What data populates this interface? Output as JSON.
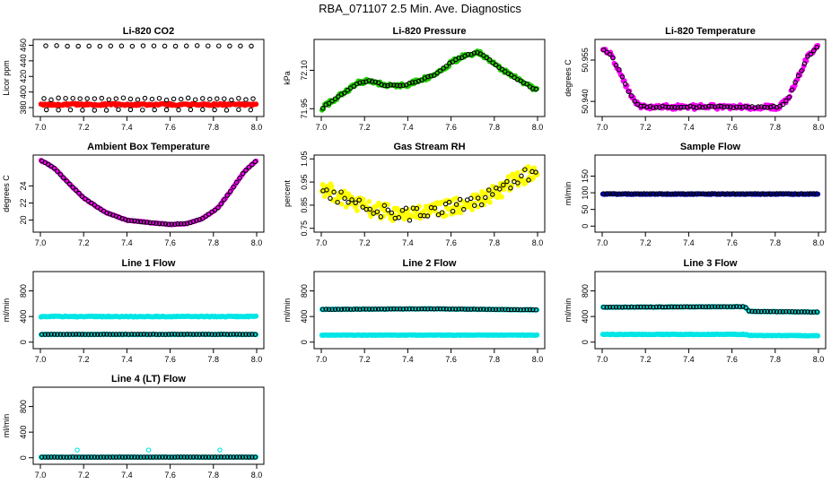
{
  "page_title": "RBA_071107  2.5 Min. Ave. Diagnostics",
  "chart_data": [
    {
      "type": "scatter",
      "title": "Li-820 CO2",
      "ylabel": "Licor ppm",
      "xlim": [
        7.0,
        8.0
      ],
      "ylim": [
        372,
        464
      ],
      "xticks": [
        "7.0",
        "7.2",
        "7.4",
        "7.6",
        "7.8",
        "8.0"
      ],
      "yticks": [
        {
          "v": 380,
          "label": "380"
        },
        {
          "v": 400,
          "label": "400"
        },
        {
          "v": 420,
          "label": "420"
        },
        {
          "v": 440,
          "label": "440"
        },
        {
          "v": 460,
          "label": "460"
        }
      ],
      "series": [
        {
          "name": "co2-dense",
          "color": "#ff0000",
          "filled": true,
          "pattern": "flat",
          "level": 384,
          "jitter": 1.2,
          "n": 170
        },
        {
          "name": "co2-spikes-low",
          "color": "#000000",
          "filled": false,
          "pattern": "flat",
          "level": 377,
          "jitter": 0.5,
          "n": 18
        },
        {
          "name": "co2-spikes-mid",
          "color": "#000000",
          "filled": false,
          "pattern": "flat",
          "level": 391,
          "jitter": 1.5,
          "n": 30
        },
        {
          "name": "co2-spikes-high",
          "color": "#000000",
          "filled": false,
          "pattern": "flat",
          "level": 459,
          "jitter": 0.5,
          "n": 20
        }
      ]
    },
    {
      "type": "scatter",
      "title": "Li-820 Pressure",
      "ylabel": "kPa",
      "xlim": [
        7.0,
        8.0
      ],
      "ylim": [
        71.93,
        72.21
      ],
      "xticks": [
        "7.0",
        "7.2",
        "7.4",
        "7.6",
        "7.8",
        "8.0"
      ],
      "yticks": [
        {
          "v": 71.95,
          "label": "71.95"
        },
        {
          "v": 72.1,
          "label": "72.10"
        }
      ],
      "series": [
        {
          "name": "pressure-dense",
          "color": "#22cc00",
          "filled": true,
          "pattern": "points",
          "jitter": 0.008,
          "n": 160,
          "points": [
            [
              7.0,
              71.95
            ],
            [
              7.05,
              71.98
            ],
            [
              7.12,
              72.02
            ],
            [
              7.17,
              72.05
            ],
            [
              7.22,
              72.06
            ],
            [
              7.3,
              72.04
            ],
            [
              7.38,
              72.04
            ],
            [
              7.45,
              72.06
            ],
            [
              7.52,
              72.08
            ],
            [
              7.6,
              72.13
            ],
            [
              7.67,
              72.16
            ],
            [
              7.73,
              72.17
            ],
            [
              7.78,
              72.14
            ],
            [
              7.84,
              72.1
            ],
            [
              7.9,
              72.07
            ],
            [
              8.0,
              72.02
            ]
          ]
        },
        {
          "name": "pressure-avg",
          "color": "#000000",
          "filled": false,
          "pattern": "points",
          "jitter": 0.003,
          "n": 70,
          "points": [
            [
              7.0,
              71.95
            ],
            [
              7.05,
              71.98
            ],
            [
              7.12,
              72.02
            ],
            [
              7.17,
              72.05
            ],
            [
              7.22,
              72.06
            ],
            [
              7.3,
              72.04
            ],
            [
              7.38,
              72.04
            ],
            [
              7.45,
              72.06
            ],
            [
              7.52,
              72.08
            ],
            [
              7.6,
              72.13
            ],
            [
              7.67,
              72.16
            ],
            [
              7.73,
              72.17
            ],
            [
              7.78,
              72.14
            ],
            [
              7.84,
              72.1
            ],
            [
              7.9,
              72.07
            ],
            [
              8.0,
              72.02
            ]
          ]
        }
      ]
    },
    {
      "type": "scatter",
      "title": "Li-820 Temperature",
      "ylabel": "degrees C",
      "xlim": [
        7.0,
        8.0
      ],
      "ylim": [
        50.9355,
        50.9615
      ],
      "xticks": [
        "7.0",
        "7.2",
        "7.4",
        "7.6",
        "7.8",
        "8.0"
      ],
      "yticks": [
        {
          "v": 50.94,
          "label": "50.940"
        },
        {
          "v": 50.955,
          "label": "50.955"
        }
      ],
      "series": [
        {
          "name": "temp-dense",
          "color": "#ff00ff",
          "filled": true,
          "pattern": "points",
          "jitter": 0.0009,
          "n": 170,
          "points": [
            [
              7.0,
              50.959
            ],
            [
              7.04,
              50.957
            ],
            [
              7.08,
              50.951
            ],
            [
              7.12,
              50.944
            ],
            [
              7.16,
              50.939
            ],
            [
              7.2,
              50.938
            ],
            [
              7.5,
              50.938
            ],
            [
              7.82,
              50.938
            ],
            [
              7.86,
              50.941
            ],
            [
              7.9,
              50.948
            ],
            [
              7.95,
              50.956
            ],
            [
              8.0,
              50.96
            ]
          ]
        },
        {
          "name": "temp-avg",
          "color": "#000000",
          "filled": false,
          "pattern": "points",
          "jitter": 0.0003,
          "n": 70,
          "points": [
            [
              7.0,
              50.959
            ],
            [
              7.04,
              50.957
            ],
            [
              7.08,
              50.951
            ],
            [
              7.12,
              50.944
            ],
            [
              7.16,
              50.939
            ],
            [
              7.2,
              50.938
            ],
            [
              7.5,
              50.938
            ],
            [
              7.82,
              50.938
            ],
            [
              7.86,
              50.941
            ],
            [
              7.9,
              50.948
            ],
            [
              7.95,
              50.956
            ],
            [
              8.0,
              50.96
            ]
          ]
        }
      ]
    },
    {
      "type": "scatter",
      "title": "Ambient Box Temperature",
      "ylabel": "degrees C",
      "xlim": [
        7.0,
        8.0
      ],
      "ylim": [
        18.9,
        27.3
      ],
      "xticks": [
        "7.0",
        "7.2",
        "7.4",
        "7.6",
        "7.8",
        "8.0"
      ],
      "yticks": [
        {
          "v": 20,
          "label": "20"
        },
        {
          "v": 22,
          "label": "22"
        },
        {
          "v": 24,
          "label": "24"
        }
      ],
      "series": [
        {
          "name": "box-temp-dense",
          "color": "#ff00ff",
          "filled": true,
          "pattern": "points",
          "jitter": 0.05,
          "n": 170,
          "points": [
            [
              7.0,
              27.0
            ],
            [
              7.06,
              26.2
            ],
            [
              7.12,
              24.6
            ],
            [
              7.2,
              22.6
            ],
            [
              7.3,
              20.9
            ],
            [
              7.4,
              20.0
            ],
            [
              7.5,
              19.7
            ],
            [
              7.6,
              19.5
            ],
            [
              7.68,
              19.6
            ],
            [
              7.75,
              20.2
            ],
            [
              7.82,
              21.4
            ],
            [
              7.88,
              23.4
            ],
            [
              7.94,
              25.6
            ],
            [
              8.0,
              27.0
            ]
          ]
        },
        {
          "name": "box-temp-avg",
          "color": "#000000",
          "filled": false,
          "pattern": "points",
          "jitter": 0.02,
          "n": 70,
          "points": [
            [
              7.0,
              27.0
            ],
            [
              7.06,
              26.2
            ],
            [
              7.12,
              24.6
            ],
            [
              7.2,
              22.6
            ],
            [
              7.3,
              20.9
            ],
            [
              7.4,
              20.0
            ],
            [
              7.5,
              19.7
            ],
            [
              7.6,
              19.5
            ],
            [
              7.68,
              19.6
            ],
            [
              7.75,
              20.2
            ],
            [
              7.82,
              21.4
            ],
            [
              7.88,
              23.4
            ],
            [
              7.94,
              25.6
            ],
            [
              8.0,
              27.0
            ]
          ]
        }
      ]
    },
    {
      "type": "scatter",
      "title": "Gas Stream RH",
      "ylabel": "percent",
      "xlim": [
        7.0,
        8.0
      ],
      "ylim": [
        0.745,
        1.055
      ],
      "xticks": [
        "7.0",
        "7.2",
        "7.4",
        "7.6",
        "7.8",
        "8.0"
      ],
      "yticks": [
        {
          "v": 0.75,
          "label": "0.75"
        },
        {
          "v": 0.85,
          "label": "0.85"
        },
        {
          "v": 0.95,
          "label": "0.95"
        },
        {
          "v": 1.05,
          "label": "1.05"
        }
      ],
      "series": [
        {
          "name": "rh-dense",
          "color": "#ffff00",
          "filled": true,
          "pattern": "points",
          "jitter": 0.035,
          "n": 220,
          "points": [
            [
              7.0,
              0.93
            ],
            [
              7.1,
              0.88
            ],
            [
              7.2,
              0.84
            ],
            [
              7.3,
              0.82
            ],
            [
              7.4,
              0.81
            ],
            [
              7.5,
              0.82
            ],
            [
              7.6,
              0.84
            ],
            [
              7.7,
              0.86
            ],
            [
              7.8,
              0.9
            ],
            [
              7.9,
              0.96
            ],
            [
              8.0,
              1.0
            ]
          ]
        },
        {
          "name": "rh-avg",
          "color": "#000000",
          "filled": false,
          "pattern": "points",
          "jitter": 0.03,
          "n": 60,
          "points": [
            [
              7.0,
              0.93
            ],
            [
              7.1,
              0.88
            ],
            [
              7.2,
              0.84
            ],
            [
              7.3,
              0.82
            ],
            [
              7.4,
              0.81
            ],
            [
              7.5,
              0.82
            ],
            [
              7.6,
              0.84
            ],
            [
              7.7,
              0.86
            ],
            [
              7.8,
              0.9
            ],
            [
              7.9,
              0.96
            ],
            [
              8.0,
              1.0
            ]
          ]
        }
      ]
    },
    {
      "type": "scatter",
      "title": "Sample Flow",
      "ylabel": "ml/min",
      "xlim": [
        7.0,
        8.0
      ],
      "ylim": [
        -10,
        205
      ],
      "xticks": [
        "7.0",
        "7.2",
        "7.4",
        "7.6",
        "7.8",
        "8.0"
      ],
      "yticks": [
        {
          "v": 0,
          "label": "0"
        },
        {
          "v": 50,
          "label": "50"
        },
        {
          "v": 100,
          "label": "100"
        },
        {
          "v": 150,
          "label": "150"
        }
      ],
      "series": [
        {
          "name": "sample-flow-dense",
          "color": "#0000cc",
          "filled": true,
          "pattern": "flat",
          "level": 96,
          "jitter": 1.0,
          "n": 170
        },
        {
          "name": "sample-flow-avg",
          "color": "#000000",
          "filled": false,
          "pattern": "flat",
          "level": 97,
          "jitter": 0.6,
          "n": 70
        }
      ]
    },
    {
      "type": "scatter",
      "title": "Line 1 Flow",
      "ylabel": "ml/min",
      "xlim": [
        7.0,
        8.0
      ],
      "ylim": [
        -60,
        1060
      ],
      "xticks": [
        "7.0",
        "7.2",
        "7.4",
        "7.6",
        "7.8",
        "8.0"
      ],
      "yticks": [
        {
          "v": 0,
          "label": "0"
        },
        {
          "v": 400,
          "label": "400"
        },
        {
          "v": 800,
          "label": "800"
        }
      ],
      "series": [
        {
          "name": "line1-upper",
          "color": "#00e5e5",
          "filled": true,
          "pattern": "flat",
          "level": 400,
          "jitter": 6,
          "n": 170
        },
        {
          "name": "line1-lower",
          "color": "#00e5e5",
          "filled": true,
          "pattern": "flat",
          "level": 120,
          "jitter": 4,
          "n": 170
        },
        {
          "name": "line1-avg",
          "color": "#000000",
          "filled": false,
          "pattern": "flat",
          "level": 122,
          "jitter": 2,
          "n": 70
        }
      ]
    },
    {
      "type": "scatter",
      "title": "Line 2 Flow",
      "ylabel": "ml/min",
      "xlim": [
        7.0,
        8.0
      ],
      "ylim": [
        -60,
        1060
      ],
      "xticks": [
        "7.0",
        "7.2",
        "7.4",
        "7.6",
        "7.8",
        "8.0"
      ],
      "yticks": [
        {
          "v": 0,
          "label": "0"
        },
        {
          "v": 400,
          "label": "400"
        },
        {
          "v": 800,
          "label": "800"
        }
      ],
      "series": [
        {
          "name": "line2-upper",
          "color": "#00e5e5",
          "filled": true,
          "pattern": "points",
          "jitter": 5,
          "n": 170,
          "points": [
            [
              7.0,
              512
            ],
            [
              7.5,
              520
            ],
            [
              8.0,
              505
            ]
          ]
        },
        {
          "name": "line2-lower",
          "color": "#00e5e5",
          "filled": true,
          "pattern": "flat",
          "level": 110,
          "jitter": 4,
          "n": 170
        },
        {
          "name": "line2-avg",
          "color": "#000000",
          "filled": false,
          "pattern": "points",
          "jitter": 2,
          "n": 70,
          "points": [
            [
              7.0,
              512
            ],
            [
              7.5,
              520
            ],
            [
              8.0,
              505
            ]
          ]
        }
      ]
    },
    {
      "type": "scatter",
      "title": "Line 3 Flow",
      "ylabel": "ml/min",
      "xlim": [
        7.0,
        8.0
      ],
      "ylim": [
        -60,
        1060
      ],
      "xticks": [
        "7.0",
        "7.2",
        "7.4",
        "7.6",
        "7.8",
        "8.0"
      ],
      "yticks": [
        {
          "v": 0,
          "label": "0"
        },
        {
          "v": 400,
          "label": "400"
        },
        {
          "v": 800,
          "label": "800"
        }
      ],
      "series": [
        {
          "name": "line3-upper",
          "color": "#00e5e5",
          "filled": true,
          "pattern": "points",
          "jitter": 5,
          "n": 170,
          "points": [
            [
              7.0,
              545
            ],
            [
              7.66,
              555
            ],
            [
              7.68,
              480
            ],
            [
              8.0,
              470
            ]
          ]
        },
        {
          "name": "line3-lower",
          "color": "#00e5e5",
          "filled": true,
          "pattern": "points",
          "jitter": 4,
          "n": 170,
          "points": [
            [
              7.0,
              120
            ],
            [
              7.66,
              122
            ],
            [
              7.68,
              105
            ],
            [
              8.0,
              100
            ]
          ]
        },
        {
          "name": "line3-avg",
          "color": "#000000",
          "filled": false,
          "pattern": "points",
          "jitter": 2,
          "n": 70,
          "points": [
            [
              7.0,
              545
            ],
            [
              7.66,
              555
            ],
            [
              7.68,
              480
            ],
            [
              8.0,
              470
            ]
          ]
        }
      ]
    },
    {
      "type": "scatter",
      "title": "Line 4 (LT) Flow",
      "ylabel": "ml/min",
      "xlim": [
        7.0,
        8.0
      ],
      "ylim": [
        -60,
        1060
      ],
      "xticks": [
        "7.0",
        "7.2",
        "7.4",
        "7.6",
        "7.8",
        "8.0"
      ],
      "yticks": [
        {
          "v": 0,
          "label": "0"
        },
        {
          "v": 400,
          "label": "400"
        },
        {
          "v": 800,
          "label": "800"
        }
      ],
      "series": [
        {
          "name": "line4-dense",
          "color": "#00e5e5",
          "filled": true,
          "pattern": "flat",
          "level": 10,
          "jitter": 3,
          "n": 170
        },
        {
          "name": "line4-avg",
          "color": "#000000",
          "filled": false,
          "pattern": "flat",
          "level": 10,
          "jitter": 1,
          "n": 70
        },
        {
          "name": "line4-spikes",
          "color": "#00e5e5",
          "filled": false,
          "pattern": "explicit",
          "points": [
            [
              7.17,
              120
            ],
            [
              7.5,
              120
            ],
            [
              7.83,
              120
            ]
          ]
        }
      ]
    }
  ]
}
